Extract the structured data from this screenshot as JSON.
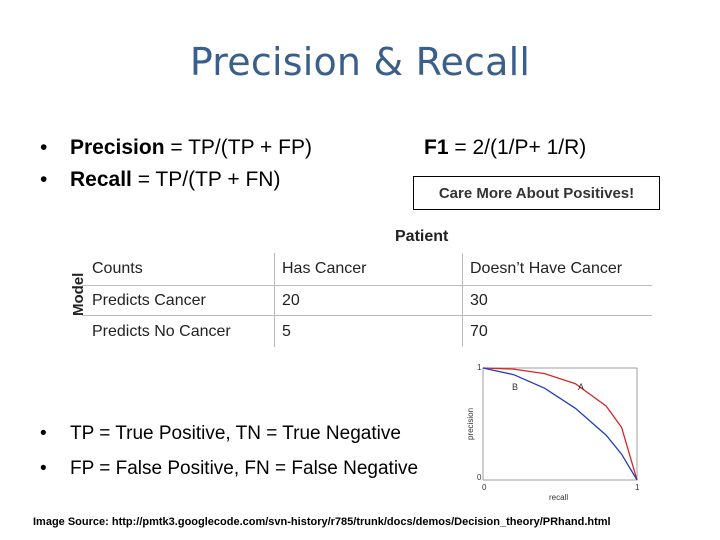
{
  "slide": {
    "title": "Precision & Recall",
    "bullets_top": [
      {
        "term": "Precision",
        "formula": " = TP/(TP + FP)"
      },
      {
        "term": "Recall",
        "formula": " = TP/(TP + FN)"
      }
    ],
    "f1": {
      "term": "F1",
      "formula": " = 2/(1/P+ 1/R)"
    },
    "callout": "Care More About Positives!",
    "bullets_bottom": [
      "TP = True Positive, TN = True Negative",
      "FP = False Positive, FN = False Negative"
    ],
    "source": "Image Source: http://pmtk3.googlecode.com/svn-history/r785/trunk/docs/demos/Decision_theory/PRhand.html"
  },
  "table": {
    "column_group": "Patient",
    "row_group": "Model",
    "headers": [
      "Counts",
      "Has Cancer",
      "Doesn’t Have Cancer"
    ],
    "rows": [
      [
        "Predicts Cancer",
        "20",
        "30"
      ],
      [
        "Predicts No Cancer",
        "5",
        "70"
      ]
    ]
  },
  "chart_data": {
    "type": "line",
    "title": "",
    "xlabel": "recall",
    "ylabel": "precision",
    "xlim": [
      0,
      1
    ],
    "ylim": [
      0,
      1
    ],
    "x_tick_labels": [
      "0",
      "1"
    ],
    "y_tick_labels": [
      "0",
      "1"
    ],
    "series": [
      {
        "name": "A",
        "color": "#d62728",
        "x": [
          0,
          0.2,
          0.4,
          0.6,
          0.8,
          0.9,
          1
        ],
        "y": [
          1,
          0.99,
          0.95,
          0.86,
          0.66,
          0.47,
          0
        ]
      },
      {
        "name": "B",
        "color": "#1f3fbf",
        "x": [
          0,
          0.2,
          0.4,
          0.6,
          0.8,
          0.9,
          1
        ],
        "y": [
          1,
          0.94,
          0.82,
          0.64,
          0.4,
          0.23,
          0
        ]
      }
    ],
    "annotations": [
      "A",
      "B"
    ]
  }
}
